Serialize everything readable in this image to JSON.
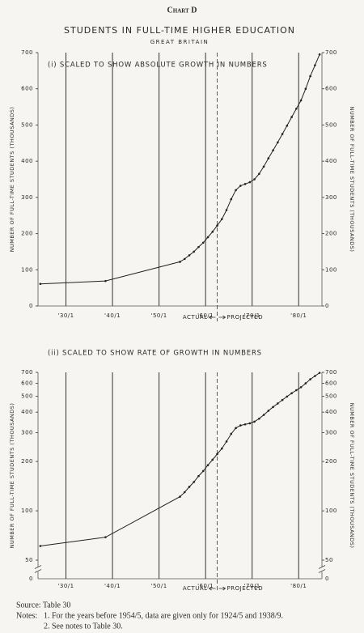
{
  "header": {
    "label": "Chart D",
    "title": "STUDENTS IN FULL-TIME HIGHER EDUCATION",
    "subtitle": "GREAT BRITAIN"
  },
  "chart_data": [
    {
      "type": "line",
      "title": "(i) SCALED TO SHOW ABSOLUTE GROWTH IN NUMBERS",
      "y_label": "NUMBER OF FULL-TIME STUDENTS (THOUSANDS)",
      "y2_label": "NUMBER OF FULL-TIME STUDENTS (THOUSANDS)",
      "x": [
        1924.5,
        1938.5,
        1954.5,
        1955.5,
        1956.5,
        1957.5,
        1958.5,
        1959.5,
        1960.5,
        1961.5,
        1962.5,
        1963.5,
        1964.5,
        1965.5,
        1966.5,
        1967.5,
        1968.5,
        1969.5,
        1970.5,
        1971.5,
        1972.5,
        1973.5,
        1974.5,
        1975.5,
        1976.5,
        1977.5,
        1978.5,
        1979.5,
        1980.5,
        1981.5,
        1982.5,
        1983.5,
        1984.5
      ],
      "values": [
        61,
        69,
        122,
        130,
        140,
        150,
        163,
        175,
        190,
        205,
        222,
        240,
        265,
        295,
        320,
        332,
        337,
        342,
        350,
        365,
        385,
        408,
        430,
        452,
        475,
        498,
        522,
        545,
        568,
        600,
        635,
        665,
        695
      ],
      "color": "#222222",
      "log_scale": false,
      "xlim": [
        1924,
        1985
      ],
      "xticks": [
        {
          "value": 1930,
          "label": "'30/1"
        },
        {
          "value": 1940,
          "label": "'40/1"
        },
        {
          "value": 1950,
          "label": "'50/1"
        },
        {
          "value": 1960,
          "label": "'60/1"
        },
        {
          "value": 1970,
          "label": "'70/1"
        },
        {
          "value": 1980,
          "label": "'80/1"
        }
      ],
      "ylim": [
        0,
        700
      ],
      "yticks": [
        0,
        100,
        200,
        300,
        400,
        500,
        600,
        700
      ],
      "y2lim": [
        0,
        700
      ],
      "y2ticks": [
        0,
        100,
        200,
        300,
        400,
        500,
        600,
        700
      ],
      "projection_start": 1962.5,
      "annotations": {
        "actual": "ACTUAL",
        "projected": "PROJECTED"
      }
    },
    {
      "type": "line",
      "title": "(ii) SCALED TO SHOW RATE OF GROWTH IN NUMBERS",
      "y_label": "NUMBER OF FULL-TIME STUDENTS (THOUSANDS)",
      "y2_label": "NUMBER OF FULL-TIME STUDENTS (THOUSANDS)",
      "x": [
        1924.5,
        1938.5,
        1954.5,
        1955.5,
        1956.5,
        1957.5,
        1958.5,
        1959.5,
        1960.5,
        1961.5,
        1962.5,
        1963.5,
        1964.5,
        1965.5,
        1966.5,
        1967.5,
        1968.5,
        1969.5,
        1970.5,
        1971.5,
        1972.5,
        1973.5,
        1974.5,
        1975.5,
        1976.5,
        1977.5,
        1978.5,
        1979.5,
        1980.5,
        1981.5,
        1982.5,
        1983.5,
        1984.5
      ],
      "values": [
        61,
        69,
        122,
        130,
        140,
        150,
        163,
        175,
        190,
        205,
        222,
        240,
        265,
        295,
        320,
        332,
        337,
        342,
        350,
        365,
        385,
        408,
        430,
        452,
        475,
        498,
        522,
        545,
        568,
        600,
        635,
        665,
        695
      ],
      "color": "#222222",
      "log_scale": true,
      "xlim": [
        1924,
        1985
      ],
      "xticks": [
        {
          "value": 1930,
          "label": "'30/1"
        },
        {
          "value": 1940,
          "label": "'40/1"
        },
        {
          "value": 1950,
          "label": "'50/1"
        },
        {
          "value": 1960,
          "label": "'60/1"
        },
        {
          "value": 1970,
          "label": "'70/1"
        },
        {
          "value": 1980,
          "label": "'80/1"
        }
      ],
      "ylim": [
        50,
        700
      ],
      "yticks": [
        50,
        100,
        200,
        300,
        400,
        500,
        600,
        700
      ],
      "y2lim": [
        50,
        700
      ],
      "y2ticks": [
        50,
        100,
        200,
        300,
        400,
        500,
        600,
        700
      ],
      "y_break_label": "0",
      "projection_start": 1962.5,
      "annotations": {
        "actual": "ACTUAL",
        "projected": "PROJECTED"
      }
    }
  ],
  "footer": {
    "source": "Source: Table 30",
    "notes_label": "Notes:",
    "notes": [
      "1. For the years before 1954/5, data are given only for 1924/5 and 1938/9.",
      "2. See notes to Table 30."
    ]
  }
}
